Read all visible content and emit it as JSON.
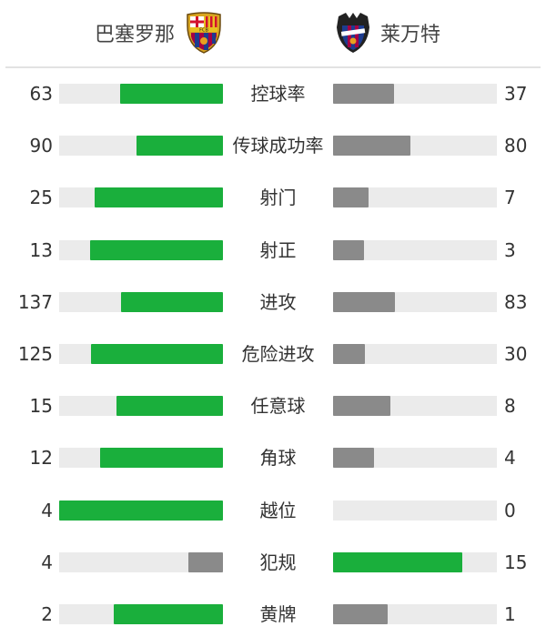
{
  "home_team": {
    "name": "巴塞罗那",
    "logo_icon": "fc-barcelona-crest"
  },
  "away_team": {
    "name": "莱万特",
    "logo_icon": "levante-crest"
  },
  "colors": {
    "leader": "#1aaf3c",
    "trailer": "#8a8a8a",
    "track": "#ebebeb"
  },
  "stats": [
    {
      "label": "控球率",
      "home": 63,
      "away": 37
    },
    {
      "label": "传球成功率",
      "home": 90,
      "away": 80
    },
    {
      "label": "射门",
      "home": 25,
      "away": 7
    },
    {
      "label": "射正",
      "home": 13,
      "away": 3
    },
    {
      "label": "进攻",
      "home": 137,
      "away": 83
    },
    {
      "label": "危险进攻",
      "home": 125,
      "away": 30
    },
    {
      "label": "任意球",
      "home": 15,
      "away": 8
    },
    {
      "label": "角球",
      "home": 12,
      "away": 4
    },
    {
      "label": "越位",
      "home": 4,
      "away": 0
    },
    {
      "label": "犯规",
      "home": 4,
      "away": 15
    },
    {
      "label": "黄牌",
      "home": 2,
      "away": 1
    }
  ]
}
